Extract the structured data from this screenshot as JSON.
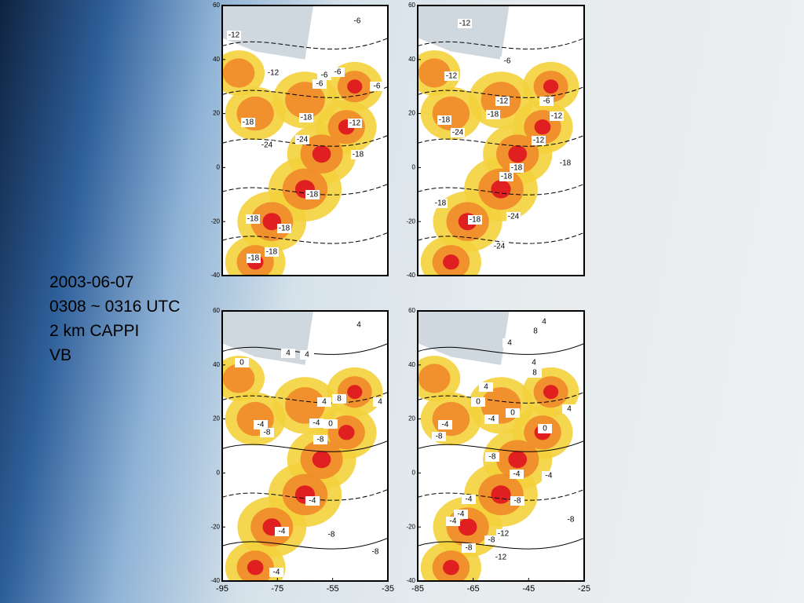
{
  "caption": [
    "2003-06-07",
    "0308 ~ 0316 UTC",
    "2 km CAPPI",
    "VB"
  ],
  "panels": [
    {
      "y_ticks": [
        "60",
        "40",
        "20",
        "0",
        "-20",
        "-40"
      ],
      "contour_labels": [
        "-6",
        "-12",
        "-12",
        "-6",
        "-6",
        "-6",
        "-6",
        "-18",
        "-18",
        "-12",
        "-24",
        "-24",
        "-18",
        "-18",
        "-18",
        "-18",
        "-18",
        "-18"
      ]
    },
    {
      "y_ticks": [
        "60",
        "40",
        "20",
        "0",
        "-20",
        "-40"
      ],
      "contour_labels": [
        "-12",
        "-6",
        "-12",
        "-12",
        "-6",
        "-18",
        "-18",
        "-12",
        "-24",
        "-12",
        "-18",
        "-18",
        "-18",
        "-18",
        "-24",
        "-18",
        "-24"
      ]
    },
    {
      "y_ticks": [
        "60",
        "40",
        "20",
        "0",
        "-20",
        "-40"
      ],
      "x_ticks": [
        "-95",
        "-75",
        "-55",
        "-35"
      ],
      "contour_labels": [
        "4",
        "4",
        "0",
        "4",
        "4",
        "8",
        "4",
        "-4",
        "-8",
        "-4",
        "0",
        "-8",
        "-4",
        "-4",
        "-8",
        "-8",
        "-4"
      ]
    },
    {
      "y_ticks": [
        "60",
        "40",
        "20",
        "0",
        "-20",
        "-40"
      ],
      "x_ticks": [
        "-85",
        "-65",
        "-45",
        "-25"
      ],
      "contour_labels": [
        "4",
        "8",
        "4",
        "4",
        "8",
        "4",
        "0",
        "0",
        "4",
        "-4",
        "-4",
        "-8",
        "0",
        "-8",
        "-4",
        "-4",
        "-8",
        "-4",
        "-4",
        "-4",
        "-12",
        "-8",
        "-8",
        "-12",
        "-8"
      ]
    }
  ]
}
